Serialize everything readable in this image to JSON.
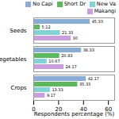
{
  "chart_data": {
    "type": "bar",
    "orientation": "horizontal",
    "categories": [
      "Seeds",
      "Vegetables",
      "Crops"
    ],
    "series": [
      {
        "name": "No Capi",
        "color": "#8BADD4",
        "values": [
          45.33,
          38.33,
          42.17
        ]
      },
      {
        "name": "Short Dr",
        "color": "#5CB85C",
        "values": [
          5.12,
          20.83,
          35.33
        ]
      },
      {
        "name": "New Va",
        "color": "#80D4D4",
        "values": [
          21.33,
          10.67,
          13.33
        ]
      },
      {
        "name": "Makangi",
        "color": "#C9A0DC",
        "values": [
          30,
          24.17,
          9.17
        ]
      }
    ],
    "xlabel": "Respondents percentage (%)",
    "xlim": [
      0,
      65
    ],
    "xticks": [
      0,
      20,
      40,
      60
    ],
    "data_labels": true,
    "legend": "upper right"
  }
}
